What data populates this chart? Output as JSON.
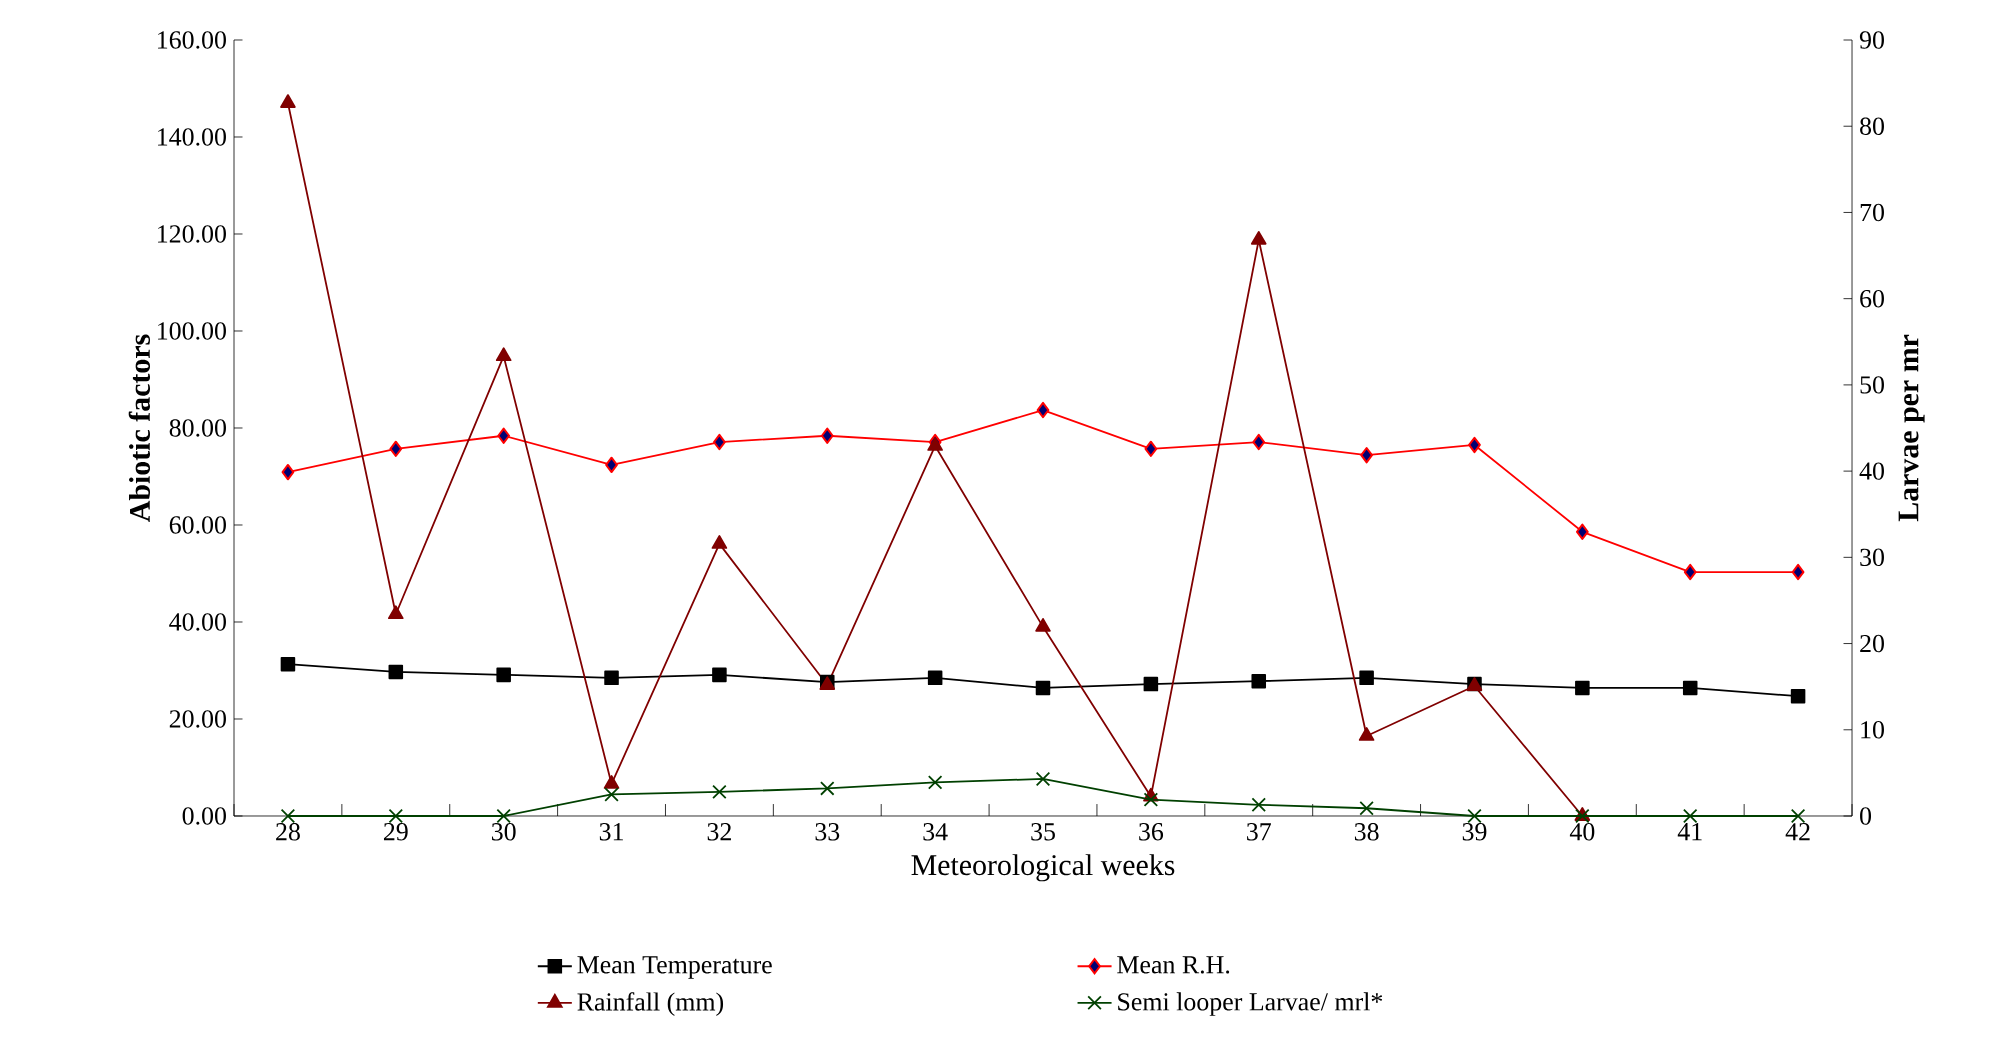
{
  "chart_data": {
    "type": "line",
    "categories": [
      "28",
      "29",
      "30",
      "31",
      "32",
      "33",
      "34",
      "35",
      "36",
      "37",
      "38",
      "39",
      "40",
      "41",
      "42"
    ],
    "xlabel": "Meteorological weeks",
    "ylabel": "Abiotic factors",
    "y2label": "Larvae per mr",
    "ylim": [
      0,
      160
    ],
    "yticks": [
      {
        "value": 0,
        "label": "0.00"
      },
      {
        "value": 20,
        "label": "20.00"
      },
      {
        "value": 40,
        "label": "40.00"
      },
      {
        "value": 60,
        "label": "60.00"
      },
      {
        "value": 80,
        "label": "80.00"
      },
      {
        "value": 100,
        "label": "100.00"
      },
      {
        "value": 120,
        "label": "120.00"
      },
      {
        "value": 140,
        "label": "140.00"
      },
      {
        "value": 160,
        "label": "160.00"
      }
    ],
    "y2lim": [
      0,
      90
    ],
    "y2ticks": [
      0,
      10,
      20,
      30,
      40,
      50,
      60,
      70,
      80,
      90
    ],
    "legend": "bottom",
    "grid": false,
    "series": [
      {
        "name": "Mean Temperature",
        "color": "#000000",
        "marker": "square",
        "values": [
          31.3,
          29.7,
          29.1,
          28.5,
          29.1,
          27.6,
          28.5,
          26.4,
          27.2,
          27.8,
          28.5,
          27.2,
          26.4,
          26.4,
          24.7
        ]
      },
      {
        "name": "Mean R.H.",
        "color": "#ff0000",
        "marker": "diamond",
        "values": [
          70.9,
          75.7,
          78.4,
          72.4,
          77.1,
          78.4,
          77.1,
          83.7,
          75.7,
          77.1,
          74.4,
          76.5,
          58.6,
          50.3,
          50.3
        ]
      },
      {
        "name": "Rainfall (mm)",
        "color": "#800000",
        "marker": "triangle",
        "values": [
          147,
          41.6,
          94.8,
          6.6,
          56.1,
          27,
          76.3,
          39,
          4,
          118.8,
          16.5,
          26.8,
          0,
          null,
          null
        ]
      },
      {
        "name": "Semi looper Larvae/ mrl*",
        "color": "#004000",
        "marker": "cross",
        "axis": "y2",
        "values": [
          0,
          0,
          0,
          2.5,
          2.8,
          3.2,
          3.9,
          4.3,
          1.9,
          1.3,
          0.9,
          0,
          0,
          0,
          0
        ]
      }
    ]
  }
}
